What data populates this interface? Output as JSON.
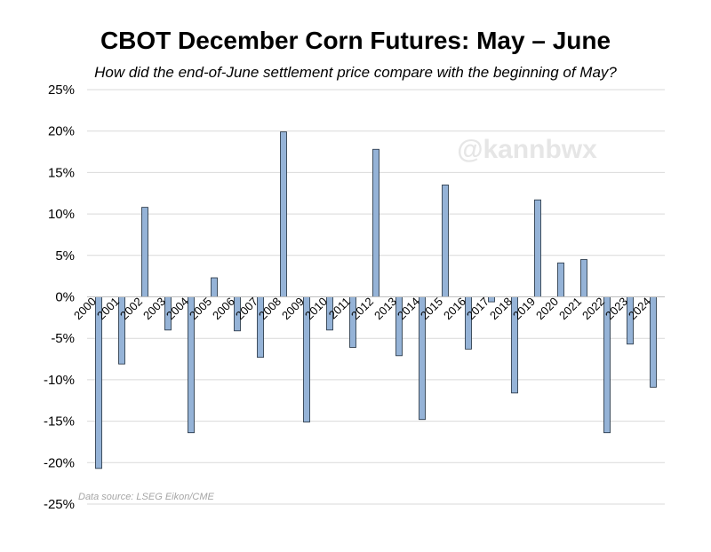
{
  "chart_data": {
    "type": "bar",
    "title": "CBOT December Corn Futures: May – June",
    "subtitle": "How did the end-of-June settlement price compare with the beginning of May?",
    "xlabel": "",
    "ylabel": "",
    "categories": [
      "2000",
      "2001",
      "2002",
      "2003",
      "2004",
      "2005",
      "2006",
      "2007",
      "2008",
      "2009",
      "2010",
      "2011",
      "2012",
      "2013",
      "2014",
      "2015",
      "2016",
      "2017",
      "2018",
      "2019",
      "2020",
      "2021",
      "2022",
      "2023",
      "2024"
    ],
    "values": [
      -20.7,
      -8.1,
      10.8,
      -4.0,
      -16.4,
      2.3,
      -4.1,
      -7.3,
      19.9,
      -15.1,
      -4.0,
      -6.1,
      17.8,
      -7.1,
      -14.8,
      13.5,
      -6.3,
      -0.6,
      -11.6,
      11.7,
      4.1,
      4.5,
      -16.4,
      -5.7,
      -10.9
    ],
    "ylim": [
      -25,
      25
    ],
    "yticks": [
      25,
      20,
      15,
      10,
      5,
      0,
      -5,
      -10,
      -15,
      -20,
      -25
    ],
    "ytick_labels": [
      "25%",
      "20%",
      "15%",
      "10%",
      "5%",
      "0%",
      "-5%",
      "-10%",
      "-15%",
      "-20%",
      "-25%"
    ],
    "grid": true,
    "bar_color": "#95b3d7",
    "bar_edge_color": "#1f2d3d",
    "annotations": [
      "@kannbwx",
      "Data source: LSEG Eikon/CME"
    ]
  },
  "watermark": "@kannbwx",
  "source_note": "Data source: LSEG Eikon/CME"
}
